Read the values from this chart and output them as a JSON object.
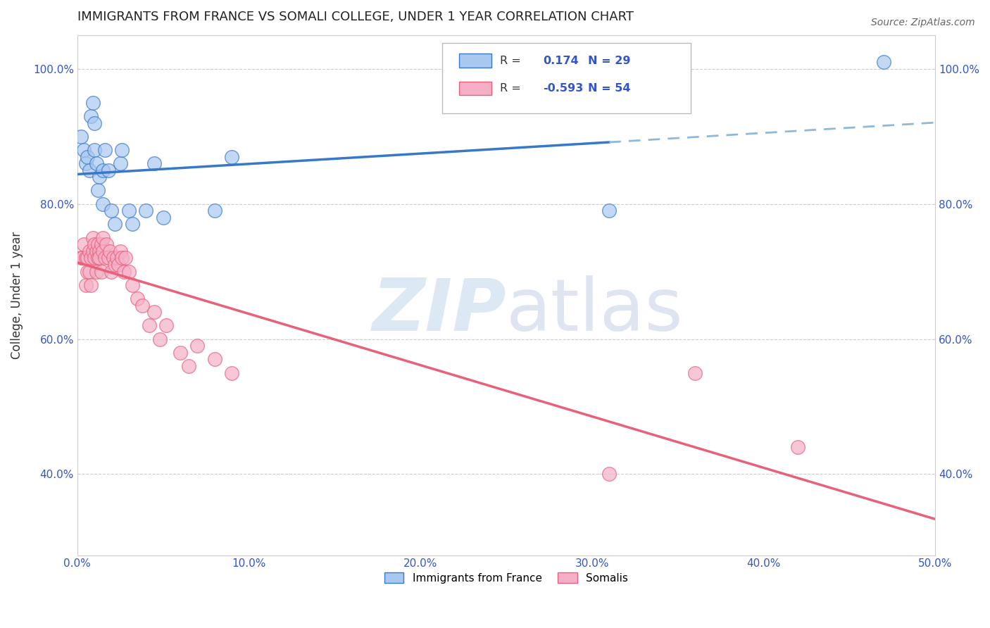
{
  "title": "IMMIGRANTS FROM FRANCE VS SOMALI COLLEGE, UNDER 1 YEAR CORRELATION CHART",
  "source": "Source: ZipAtlas.com",
  "ylabel": "College, Under 1 year",
  "xmin": 0.0,
  "xmax": 0.5,
  "ymin": 0.28,
  "ymax": 1.05,
  "x_ticks": [
    0.0,
    0.1,
    0.2,
    0.3,
    0.4,
    0.5
  ],
  "x_tick_labels": [
    "0.0%",
    "10.0%",
    "20.0%",
    "30.0%",
    "40.0%",
    "50.0%"
  ],
  "y_ticks": [
    0.4,
    0.6,
    0.8,
    1.0
  ],
  "y_tick_labels": [
    "40.0%",
    "60.0%",
    "80.0%",
    "100.0%"
  ],
  "legend_labels": [
    "Immigrants from France",
    "Somalis"
  ],
  "r_france": 0.174,
  "n_france": 29,
  "r_somali": -0.593,
  "n_somali": 54,
  "france_color": "#a8c8f0",
  "somali_color": "#f5b0c8",
  "france_line_color": "#3878c8",
  "somali_line_color": "#e8607a",
  "france_line_dashed_color": "#90b8d8",
  "france_x": [
    0.002,
    0.004,
    0.005,
    0.006,
    0.007,
    0.008,
    0.009,
    0.01,
    0.01,
    0.011,
    0.012,
    0.013,
    0.015,
    0.015,
    0.016,
    0.018,
    0.02,
    0.022,
    0.025,
    0.026,
    0.03,
    0.032,
    0.04,
    0.045,
    0.05,
    0.08,
    0.09,
    0.31,
    0.47
  ],
  "france_y": [
    0.9,
    0.88,
    0.86,
    0.87,
    0.85,
    0.93,
    0.95,
    0.92,
    0.88,
    0.86,
    0.82,
    0.84,
    0.8,
    0.85,
    0.88,
    0.85,
    0.79,
    0.77,
    0.86,
    0.88,
    0.79,
    0.77,
    0.79,
    0.86,
    0.78,
    0.79,
    0.87,
    0.79,
    1.01
  ],
  "somali_x": [
    0.002,
    0.003,
    0.004,
    0.005,
    0.005,
    0.006,
    0.006,
    0.007,
    0.007,
    0.008,
    0.008,
    0.009,
    0.009,
    0.01,
    0.01,
    0.011,
    0.011,
    0.012,
    0.012,
    0.013,
    0.013,
    0.014,
    0.014,
    0.015,
    0.015,
    0.016,
    0.017,
    0.018,
    0.019,
    0.02,
    0.021,
    0.022,
    0.023,
    0.024,
    0.025,
    0.026,
    0.027,
    0.028,
    0.03,
    0.032,
    0.035,
    0.038,
    0.042,
    0.045,
    0.048,
    0.052,
    0.06,
    0.065,
    0.07,
    0.08,
    0.09,
    0.31,
    0.36,
    0.42
  ],
  "somali_y": [
    0.72,
    0.72,
    0.74,
    0.68,
    0.72,
    0.7,
    0.72,
    0.7,
    0.73,
    0.68,
    0.72,
    0.73,
    0.75,
    0.74,
    0.72,
    0.7,
    0.73,
    0.74,
    0.72,
    0.73,
    0.72,
    0.74,
    0.7,
    0.73,
    0.75,
    0.72,
    0.74,
    0.72,
    0.73,
    0.7,
    0.72,
    0.71,
    0.72,
    0.71,
    0.73,
    0.72,
    0.7,
    0.72,
    0.7,
    0.68,
    0.66,
    0.65,
    0.62,
    0.64,
    0.6,
    0.62,
    0.58,
    0.56,
    0.59,
    0.57,
    0.55,
    0.4,
    0.55,
    0.44
  ]
}
